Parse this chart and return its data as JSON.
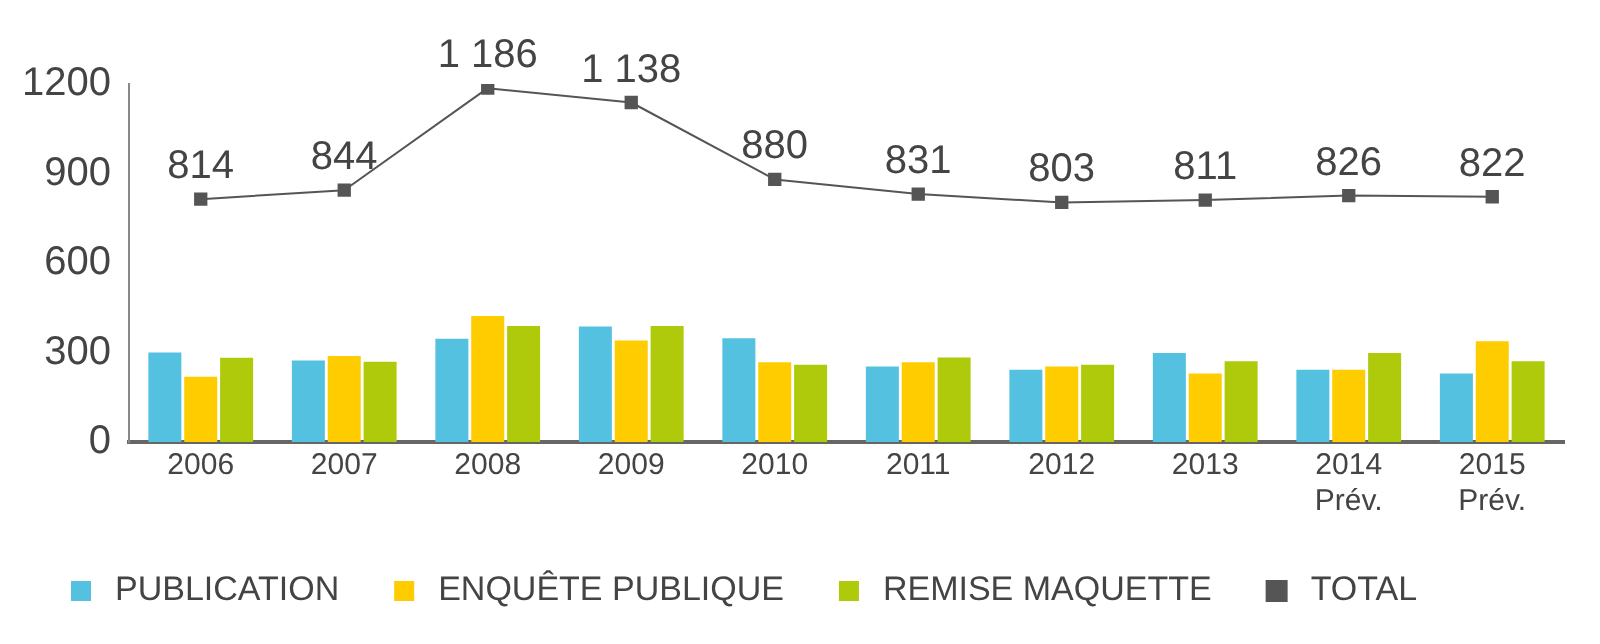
{
  "chart_data": {
    "type": "bar",
    "categories": [
      "2006",
      "2007",
      "2008",
      "2009",
      "2010",
      "2011",
      "2012",
      "2013",
      "2014\nPrév.",
      "2015\nPrév."
    ],
    "series": [
      {
        "name": "PUBLICATION",
        "color": "#55c1e0",
        "values": [
          300,
          273,
          346,
          387,
          348,
          253,
          242,
          298,
          242,
          230
        ]
      },
      {
        "name": "ENQUÊTE PUBLIQUE",
        "color": "#ffcc00",
        "values": [
          219,
          288,
          422,
          340,
          267,
          267,
          253,
          230,
          242,
          338
        ]
      },
      {
        "name": "REMISE MAQUETTE",
        "color": "#afca0b",
        "values": [
          282,
          269,
          389,
          389,
          259,
          283,
          259,
          271,
          298,
          271
        ]
      },
      {
        "name": "TOTAL",
        "type": "line",
        "color": "#555555",
        "marker": "square",
        "values": [
          814,
          844,
          1186,
          1138,
          880,
          831,
          803,
          811,
          826,
          822
        ],
        "value_labels": [
          "814",
          "844",
          "1 186",
          "1 138",
          "880",
          "831",
          "803",
          "811",
          "826",
          "822"
        ]
      }
    ],
    "ylim": [
      0,
      1200
    ],
    "yticks": [
      0,
      300,
      600,
      900,
      1200
    ],
    "grid": false,
    "legend": "bottom"
  }
}
